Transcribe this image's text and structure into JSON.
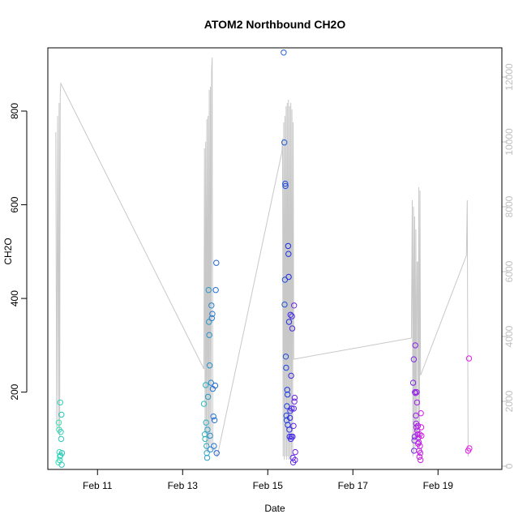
{
  "chart_data": {
    "type": "scatter",
    "title": "ATOM2 Northbound CH2O",
    "xlabel": "Date",
    "ylabel": "CH2O",
    "xlim": [
      "2016-02-09 20:00",
      "2016-02-20 12:00"
    ],
    "ylim": [
      35,
      935
    ],
    "y_ticks": [
      200,
      400,
      600,
      800
    ],
    "x_ticks": [
      {
        "label": "Feb 11",
        "date": "2016-02-11 00:00"
      },
      {
        "label": "Feb 13",
        "date": "2016-02-13 00:00"
      },
      {
        "label": "Feb 15",
        "date": "2016-02-15 00:00"
      },
      {
        "label": "Feb 17",
        "date": "2016-02-17 00:00"
      },
      {
        "label": "Feb 19",
        "date": "2016-02-19 00:00"
      }
    ],
    "y2lim": [
      -100,
      12900
    ],
    "y2_ticks": [
      0,
      2000,
      4000,
      6000,
      8000,
      10000,
      12000
    ],
    "grid": false,
    "legend": "none",
    "colors": {
      "points_start": "#33e6b3",
      "points_mid": "#1a2ee6",
      "points_end": "#e61ae6",
      "altitude_line": "#c8c8c8"
    },
    "points": [
      [
        "2016-02-10 02:00",
        50
      ],
      [
        "2016-02-10 02:10",
        135
      ],
      [
        "2016-02-10 02:20",
        120
      ],
      [
        "2016-02-10 02:30",
        72
      ],
      [
        "2016-02-10 02:40",
        55
      ],
      [
        "2016-02-10 02:50",
        63
      ],
      [
        "2016-02-10 03:00",
        178
      ],
      [
        "2016-02-10 03:10",
        65
      ],
      [
        "2016-02-10 03:20",
        115
      ],
      [
        "2016-02-10 03:30",
        100
      ],
      [
        "2016-02-10 03:40",
        152
      ],
      [
        "2016-02-10 03:50",
        45
      ],
      [
        "2016-02-10 04:00",
        70
      ],
      [
        "2016-02-13 12:00",
        175
      ],
      [
        "2016-02-13 12:30",
        110
      ],
      [
        "2016-02-13 12:45",
        100
      ],
      [
        "2016-02-13 13:00",
        215
      ],
      [
        "2016-02-13 13:15",
        135
      ],
      [
        "2016-02-13 13:30",
        85
      ],
      [
        "2016-02-13 13:40",
        70
      ],
      [
        "2016-02-13 13:50",
        60
      ],
      [
        "2016-02-13 14:00",
        120
      ],
      [
        "2016-02-13 14:20",
        190
      ],
      [
        "2016-02-13 14:40",
        418
      ],
      [
        "2016-02-13 14:50",
        350
      ],
      [
        "2016-02-13 15:00",
        322
      ],
      [
        "2016-02-13 15:15",
        257
      ],
      [
        "2016-02-13 15:30",
        107
      ],
      [
        "2016-02-13 15:45",
        78
      ],
      [
        "2016-02-13 16:00",
        220
      ],
      [
        "2016-02-13 16:15",
        385
      ],
      [
        "2016-02-13 16:30",
        358
      ],
      [
        "2016-02-13 16:45",
        367
      ],
      [
        "2016-02-13 17:00",
        207
      ],
      [
        "2016-02-13 17:20",
        148
      ],
      [
        "2016-02-13 17:40",
        85
      ],
      [
        "2016-02-13 18:00",
        140
      ],
      [
        "2016-02-13 18:20",
        214
      ],
      [
        "2016-02-13 18:40",
        418
      ],
      [
        "2016-02-13 19:00",
        476
      ],
      [
        "2016-02-13 19:10",
        70
      ],
      [
        "2016-02-15 09:00",
        925
      ],
      [
        "2016-02-15 09:20",
        733
      ],
      [
        "2016-02-15 09:30",
        387
      ],
      [
        "2016-02-15 09:40",
        440
      ],
      [
        "2016-02-15 09:50",
        645
      ],
      [
        "2016-02-15 10:00",
        640
      ],
      [
        "2016-02-15 10:10",
        276
      ],
      [
        "2016-02-15 10:20",
        252
      ],
      [
        "2016-02-15 10:30",
        150
      ],
      [
        "2016-02-15 10:40",
        140
      ],
      [
        "2016-02-15 10:50",
        170
      ],
      [
        "2016-02-15 11:00",
        205
      ],
      [
        "2016-02-15 11:10",
        195
      ],
      [
        "2016-02-15 11:20",
        130
      ],
      [
        "2016-02-15 11:30",
        512
      ],
      [
        "2016-02-15 11:40",
        495
      ],
      [
        "2016-02-15 11:50",
        446
      ],
      [
        "2016-02-15 12:00",
        350
      ],
      [
        "2016-02-15 12:10",
        120
      ],
      [
        "2016-02-15 12:20",
        105
      ],
      [
        "2016-02-15 12:30",
        145
      ],
      [
        "2016-02-15 12:40",
        160
      ],
      [
        "2016-02-15 12:50",
        365
      ],
      [
        "2016-02-15 13:00",
        100
      ],
      [
        "2016-02-15 13:10",
        235
      ],
      [
        "2016-02-15 13:20",
        105
      ],
      [
        "2016-02-15 13:30",
        165
      ],
      [
        "2016-02-15 13:40",
        362
      ],
      [
        "2016-02-15 13:50",
        336
      ],
      [
        "2016-02-15 14:00",
        105
      ],
      [
        "2016-02-15 14:10",
        60
      ],
      [
        "2016-02-15 14:20",
        50
      ],
      [
        "2016-02-15 14:30",
        128
      ],
      [
        "2016-02-15 14:40",
        165
      ],
      [
        "2016-02-15 14:50",
        385
      ],
      [
        "2016-02-15 15:00",
        180
      ],
      [
        "2016-02-15 15:10",
        188
      ],
      [
        "2016-02-15 15:20",
        55
      ],
      [
        "2016-02-15 15:30",
        72
      ],
      [
        "2016-02-18 10:00",
        220
      ],
      [
        "2016-02-18 10:20",
        270
      ],
      [
        "2016-02-18 10:30",
        75
      ],
      [
        "2016-02-18 10:40",
        97
      ],
      [
        "2016-02-18 10:50",
        105
      ],
      [
        "2016-02-18 11:00",
        200
      ],
      [
        "2016-02-18 11:10",
        300
      ],
      [
        "2016-02-18 11:20",
        198
      ],
      [
        "2016-02-18 11:30",
        150
      ],
      [
        "2016-02-18 11:40",
        133
      ],
      [
        "2016-02-18 11:50",
        125
      ],
      [
        "2016-02-18 12:00",
        200
      ],
      [
        "2016-02-18 12:10",
        178
      ],
      [
        "2016-02-18 12:20",
        118
      ],
      [
        "2016-02-18 12:30",
        110
      ],
      [
        "2016-02-18 12:40",
        128
      ],
      [
        "2016-02-18 12:50",
        90
      ],
      [
        "2016-02-18 13:00",
        103
      ],
      [
        "2016-02-18 13:10",
        93
      ],
      [
        "2016-02-18 13:20",
        75
      ],
      [
        "2016-02-18 13:30",
        62
      ],
      [
        "2016-02-18 13:40",
        110
      ],
      [
        "2016-02-18 13:50",
        85
      ],
      [
        "2016-02-18 14:00",
        70
      ],
      [
        "2016-02-18 14:10",
        55
      ],
      [
        "2016-02-18 14:20",
        155
      ],
      [
        "2016-02-18 14:30",
        125
      ],
      [
        "2016-02-18 14:40",
        107
      ],
      [
        "2016-02-19 17:00",
        75
      ],
      [
        "2016-02-19 17:30",
        272
      ],
      [
        "2016-02-19 17:40",
        80
      ]
    ],
    "altitude_line": [
      [
        "2016-02-10 00:30",
        10300
      ],
      [
        "2016-02-10 01:00",
        1200
      ],
      [
        "2016-02-10 01:30",
        10800
      ],
      [
        "2016-02-10 02:00",
        1000
      ],
      [
        "2016-02-10 02:20",
        11200
      ],
      [
        "2016-02-10 02:40",
        900
      ],
      [
        "2016-02-10 03:00",
        11500
      ],
      [
        "2016-02-10 03:20",
        11800
      ],
      [
        "2016-02-13 12:00",
        3000
      ],
      [
        "2016-02-13 12:20",
        9800
      ],
      [
        "2016-02-13 12:40",
        1000
      ],
      [
        "2016-02-13 13:00",
        10000
      ],
      [
        "2016-02-13 13:20",
        500
      ],
      [
        "2016-02-13 13:40",
        10700
      ],
      [
        "2016-02-13 14:00",
        400
      ],
      [
        "2016-02-13 14:20",
        10800
      ],
      [
        "2016-02-13 14:40",
        600
      ],
      [
        "2016-02-13 15:00",
        11600
      ],
      [
        "2016-02-13 15:20",
        700
      ],
      [
        "2016-02-13 15:40",
        11700
      ],
      [
        "2016-02-13 16:00",
        500
      ],
      [
        "2016-02-13 16:20",
        12200
      ],
      [
        "2016-02-13 16:40",
        12600
      ],
      [
        "2016-02-13 17:00",
        700
      ],
      [
        "2016-02-13 19:30",
        300
      ],
      [
        "2016-02-15 08:00",
        9700
      ],
      [
        "2016-02-15 08:20",
        10100
      ],
      [
        "2016-02-15 08:40",
        300
      ],
      [
        "2016-02-15 09:00",
        10600
      ],
      [
        "2016-02-15 09:20",
        200
      ],
      [
        "2016-02-15 09:40",
        10800
      ],
      [
        "2016-02-15 10:00",
        300
      ],
      [
        "2016-02-15 10:20",
        11100
      ],
      [
        "2016-02-15 10:40",
        200
      ],
      [
        "2016-02-15 11:00",
        11200
      ],
      [
        "2016-02-15 11:20",
        300
      ],
      [
        "2016-02-15 11:40",
        11300
      ],
      [
        "2016-02-15 12:00",
        200
      ],
      [
        "2016-02-15 12:20",
        11100
      ],
      [
        "2016-02-15 12:40",
        300
      ],
      [
        "2016-02-15 13:00",
        11200
      ],
      [
        "2016-02-15 13:20",
        200
      ],
      [
        "2016-02-15 13:40",
        11000
      ],
      [
        "2016-02-15 14:00",
        300
      ],
      [
        "2016-02-15 14:20",
        10600
      ],
      [
        "2016-02-15 14:40",
        3300
      ],
      [
        "2016-02-18 09:00",
        3950
      ],
      [
        "2016-02-18 09:30",
        8200
      ],
      [
        "2016-02-18 09:50",
        300
      ],
      [
        "2016-02-18 10:10",
        8000
      ],
      [
        "2016-02-18 10:30",
        400
      ],
      [
        "2016-02-18 10:50",
        7700
      ],
      [
        "2016-02-18 11:10",
        600
      ],
      [
        "2016-02-18 11:30",
        7300
      ],
      [
        "2016-02-18 11:50",
        1000
      ],
      [
        "2016-02-18 12:10",
        6300
      ],
      [
        "2016-02-18 12:30",
        6300
      ],
      [
        "2016-02-18 12:50",
        600
      ],
      [
        "2016-02-18 13:10",
        8600
      ],
      [
        "2016-02-18 13:30",
        300
      ],
      [
        "2016-02-18 13:50",
        8500
      ],
      [
        "2016-02-18 14:10",
        2800
      ],
      [
        "2016-02-19 16:00",
        6500
      ],
      [
        "2016-02-19 16:30",
        8200
      ],
      [
        "2016-02-19 17:00",
        300
      ]
    ]
  }
}
